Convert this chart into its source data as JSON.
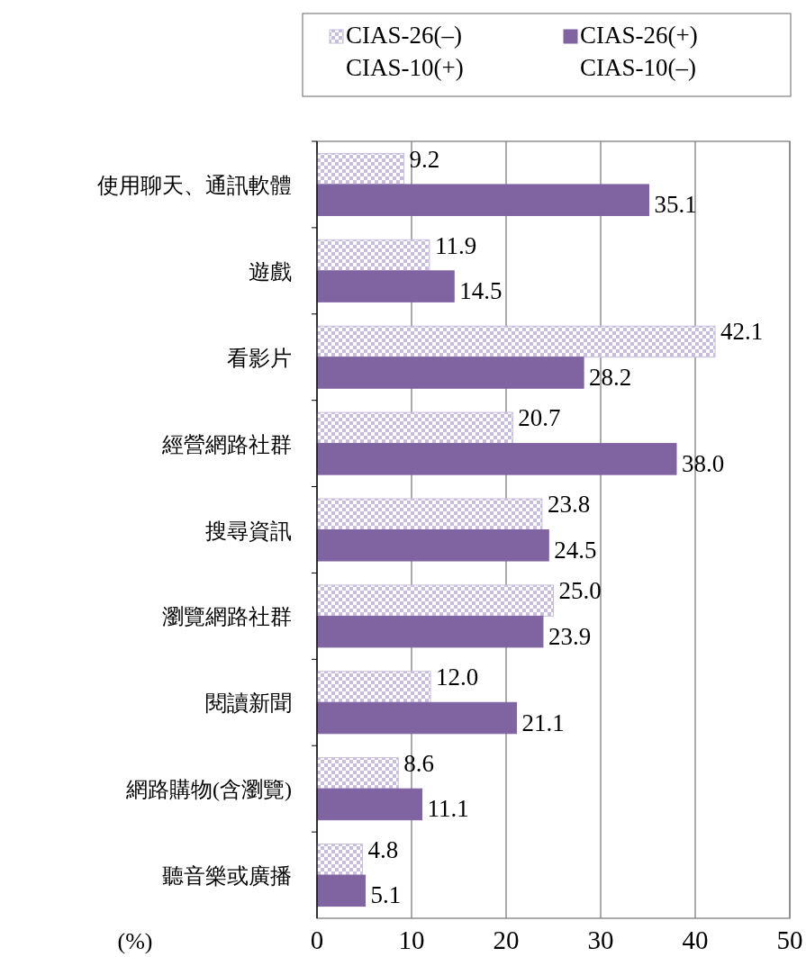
{
  "chart_data": {
    "type": "bar",
    "orientation": "horizontal",
    "xlabel": "(%)",
    "categories": [
      "使用聊天、通訊軟體",
      "遊戲",
      "看影片",
      "經營網路社群",
      "搜尋資訊",
      "瀏覽網路社群",
      "閱讀新聞",
      "網路購物(含瀏覽)",
      "聽音樂或廣播"
    ],
    "series": [
      {
        "name": "CIAS-26(–)",
        "color": "#c8bedb",
        "values": [
          9.2,
          11.9,
          42.1,
          20.7,
          23.8,
          25.0,
          12.0,
          8.6,
          4.8
        ],
        "value_labels": [
          "9.2",
          "11.9",
          "42.1",
          "20.7",
          "23.8",
          "25.0",
          "12.0",
          "8.6",
          "4.8"
        ]
      },
      {
        "name": "CIAS-26(+)",
        "color": "#8064a2",
        "values": [
          35.1,
          14.5,
          28.2,
          38.0,
          24.5,
          23.9,
          21.1,
          11.1,
          5.1
        ],
        "value_labels": [
          "35.1",
          "14.5",
          "28.2",
          "38.0",
          "24.5",
          "23.9",
          "21.1",
          "11.1",
          "5.1"
        ]
      },
      {
        "name": "CIAS-10(+)",
        "values": [
          null,
          null,
          null,
          null,
          null,
          null,
          null,
          null,
          null
        ]
      },
      {
        "name": "CIAS-10(–)",
        "values": [
          null,
          null,
          null,
          null,
          null,
          null,
          null,
          null,
          null
        ]
      }
    ],
    "xlim": [
      0,
      50
    ],
    "xticks": [
      0,
      10,
      20,
      30,
      40,
      50
    ],
    "grid": "x",
    "legend": "top"
  }
}
